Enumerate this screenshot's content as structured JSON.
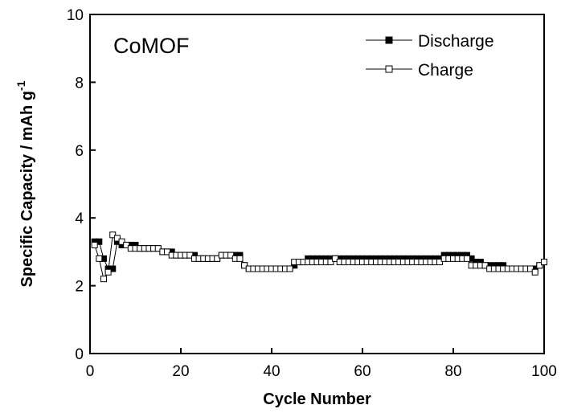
{
  "chart_data": {
    "type": "line",
    "title": "",
    "annotation": "CoMOF",
    "xlabel": "Cycle Number",
    "ylabel": "Specific Capacity / mAh g",
    "ylabel_superscript": "-1",
    "xlim": [
      0,
      100
    ],
    "ylim": [
      0,
      10
    ],
    "xticks": [
      "0",
      "20",
      "40",
      "60",
      "80",
      "100"
    ],
    "yticks": [
      "0",
      "2",
      "4",
      "6",
      "8",
      "10"
    ],
    "grid": false,
    "legend_position": "top-right",
    "x": [
      1,
      2,
      3,
      4,
      5,
      6,
      7,
      8,
      9,
      10,
      11,
      12,
      13,
      14,
      15,
      16,
      17,
      18,
      19,
      20,
      21,
      22,
      23,
      24,
      25,
      26,
      27,
      28,
      29,
      30,
      31,
      32,
      33,
      34,
      35,
      36,
      37,
      38,
      39,
      40,
      41,
      42,
      43,
      44,
      45,
      46,
      47,
      48,
      49,
      50,
      51,
      52,
      53,
      54,
      55,
      56,
      57,
      58,
      59,
      60,
      61,
      62,
      63,
      64,
      65,
      66,
      67,
      68,
      69,
      70,
      71,
      72,
      73,
      74,
      75,
      76,
      77,
      78,
      79,
      80,
      81,
      82,
      83,
      84,
      85,
      86,
      87,
      88,
      89,
      90,
      91,
      92,
      93,
      94,
      95,
      96,
      97,
      98,
      99,
      100
    ],
    "series": [
      {
        "name": "Discharge",
        "marker": "filled-square",
        "color": "#000000",
        "values": [
          3.3,
          3.3,
          2.8,
          2.5,
          2.5,
          3.3,
          3.2,
          3.2,
          3.2,
          3.2,
          3.1,
          3.1,
          3.1,
          3.1,
          3.1,
          3.0,
          3.0,
          3.0,
          2.9,
          2.9,
          2.9,
          2.9,
          2.9,
          2.8,
          2.8,
          2.8,
          2.8,
          2.8,
          2.9,
          2.9,
          2.9,
          2.9,
          2.9,
          2.6,
          2.5,
          2.5,
          2.5,
          2.5,
          2.5,
          2.5,
          2.5,
          2.5,
          2.5,
          2.5,
          2.6,
          2.7,
          2.7,
          2.8,
          2.8,
          2.8,
          2.8,
          2.8,
          2.8,
          2.8,
          2.8,
          2.8,
          2.8,
          2.8,
          2.8,
          2.8,
          2.8,
          2.8,
          2.8,
          2.8,
          2.8,
          2.8,
          2.8,
          2.8,
          2.8,
          2.8,
          2.8,
          2.8,
          2.8,
          2.8,
          2.8,
          2.8,
          2.8,
          2.9,
          2.9,
          2.9,
          2.9,
          2.9,
          2.9,
          2.8,
          2.7,
          2.7,
          2.6,
          2.6,
          2.6,
          2.6,
          2.6,
          2.5,
          2.5,
          2.5,
          2.5,
          2.5,
          2.5,
          2.5,
          2.6,
          2.7
        ]
      },
      {
        "name": "Charge",
        "marker": "open-square",
        "color": "#000000",
        "values": [
          3.2,
          2.8,
          2.2,
          2.4,
          3.5,
          3.4,
          3.3,
          3.2,
          3.1,
          3.1,
          3.1,
          3.1,
          3.1,
          3.1,
          3.1,
          3.0,
          3.0,
          2.9,
          2.9,
          2.9,
          2.9,
          2.9,
          2.8,
          2.8,
          2.8,
          2.8,
          2.8,
          2.8,
          2.9,
          2.9,
          2.9,
          2.8,
          2.8,
          2.6,
          2.5,
          2.5,
          2.5,
          2.5,
          2.5,
          2.5,
          2.5,
          2.5,
          2.5,
          2.5,
          2.7,
          2.7,
          2.7,
          2.7,
          2.7,
          2.7,
          2.7,
          2.7,
          2.7,
          2.8,
          2.7,
          2.7,
          2.7,
          2.7,
          2.7,
          2.7,
          2.7,
          2.7,
          2.7,
          2.7,
          2.7,
          2.7,
          2.7,
          2.7,
          2.7,
          2.7,
          2.7,
          2.7,
          2.7,
          2.7,
          2.7,
          2.7,
          2.7,
          2.8,
          2.8,
          2.8,
          2.8,
          2.8,
          2.8,
          2.6,
          2.6,
          2.6,
          2.6,
          2.5,
          2.5,
          2.5,
          2.5,
          2.5,
          2.5,
          2.5,
          2.5,
          2.5,
          2.5,
          2.4,
          2.6,
          2.7
        ]
      }
    ]
  }
}
